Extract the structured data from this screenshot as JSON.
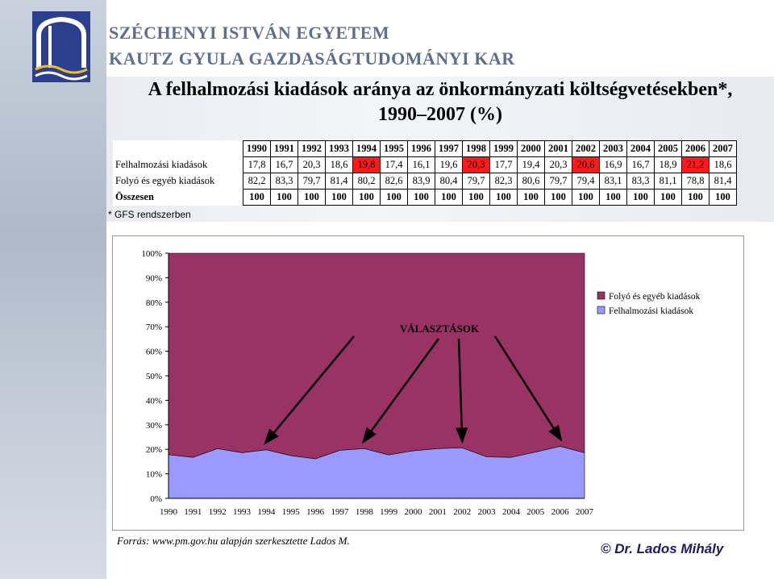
{
  "header": {
    "university": "SZÉCHENYI ISTVÁN EGYETEM",
    "faculty": "KAUTZ GYULA GAZDASÁGTUDOMÁNYI KAR"
  },
  "title_line1": "A felhalmozási kiadások aránya az önkormányzati költségvetésekben*,",
  "title_line2": "1990–2007 (%)",
  "table": {
    "years": [
      "1990",
      "1991",
      "1992",
      "1993",
      "1994",
      "1995",
      "1996",
      "1997",
      "1998",
      "1999",
      "2000",
      "2001",
      "2002",
      "2003",
      "2004",
      "2005",
      "2006",
      "2007"
    ],
    "rows": [
      {
        "label": "Felhalmozási kiadások",
        "values": [
          "17,8",
          "16,7",
          "20,3",
          "18,6",
          "19,8",
          "17,4",
          "16,1",
          "19,6",
          "20,3",
          "17,7",
          "19,4",
          "20,3",
          "20,6",
          "16,9",
          "16,7",
          "18,9",
          "21,2",
          "18,6"
        ]
      },
      {
        "label": "Folyó és egyéb kiadások",
        "values": [
          "82,2",
          "83,3",
          "79,7",
          "81,4",
          "80,2",
          "82,6",
          "83,9",
          "80,4",
          "79,7",
          "82,3",
          "80,6",
          "79,7",
          "79,4",
          "83,1",
          "83,3",
          "81,1",
          "78,8",
          "81,4"
        ]
      },
      {
        "label": "Összesen",
        "values": [
          "100",
          "100",
          "100",
          "100",
          "100",
          "100",
          "100",
          "100",
          "100",
          "100",
          "100",
          "100",
          "100",
          "100",
          "100",
          "100",
          "100",
          "100"
        ]
      }
    ],
    "highlighted": [
      4,
      8,
      12,
      16
    ]
  },
  "footnote": "* GFS rendszerben",
  "chart_data": {
    "type": "area",
    "stacked": true,
    "percent": true,
    "x": [
      "1990",
      "1991",
      "1992",
      "1993",
      "1994",
      "1995",
      "1996",
      "1997",
      "1998",
      "1999",
      "2000",
      "2001",
      "2002",
      "2003",
      "2004",
      "2005",
      "2006",
      "2007"
    ],
    "series": [
      {
        "name": "Felhalmozási kiadások",
        "values": [
          17.8,
          16.7,
          20.3,
          18.6,
          19.8,
          17.4,
          16.1,
          19.6,
          20.3,
          17.7,
          19.4,
          20.3,
          20.6,
          16.9,
          16.7,
          18.9,
          21.2,
          18.6
        ],
        "color": "#9999ff"
      },
      {
        "name": "Folyó és egyéb kiadások",
        "values": [
          82.2,
          83.3,
          79.7,
          81.4,
          80.2,
          82.6,
          83.9,
          80.4,
          79.7,
          82.3,
          80.6,
          79.7,
          79.4,
          83.1,
          83.3,
          81.1,
          78.8,
          81.4
        ],
        "color": "#993366"
      }
    ],
    "y_ticks": [
      "0%",
      "10%",
      "20%",
      "30%",
      "40%",
      "50%",
      "60%",
      "70%",
      "80%",
      "90%",
      "100%"
    ],
    "ylim": [
      0,
      100
    ],
    "annotation": "VÁLASZTÁSOK",
    "arrow_targets": [
      "1994",
      "1998",
      "2002",
      "2006"
    ],
    "legend_position": "right"
  },
  "source": "Forrás: www.pm.gov.hu alapján szerkesztette Lados M.",
  "author": "© Dr. Lados Mihály",
  "colors": {
    "highlight": "#ff1a1a",
    "accent_text": "#5d6f8f",
    "author": "#1a1a6e"
  }
}
